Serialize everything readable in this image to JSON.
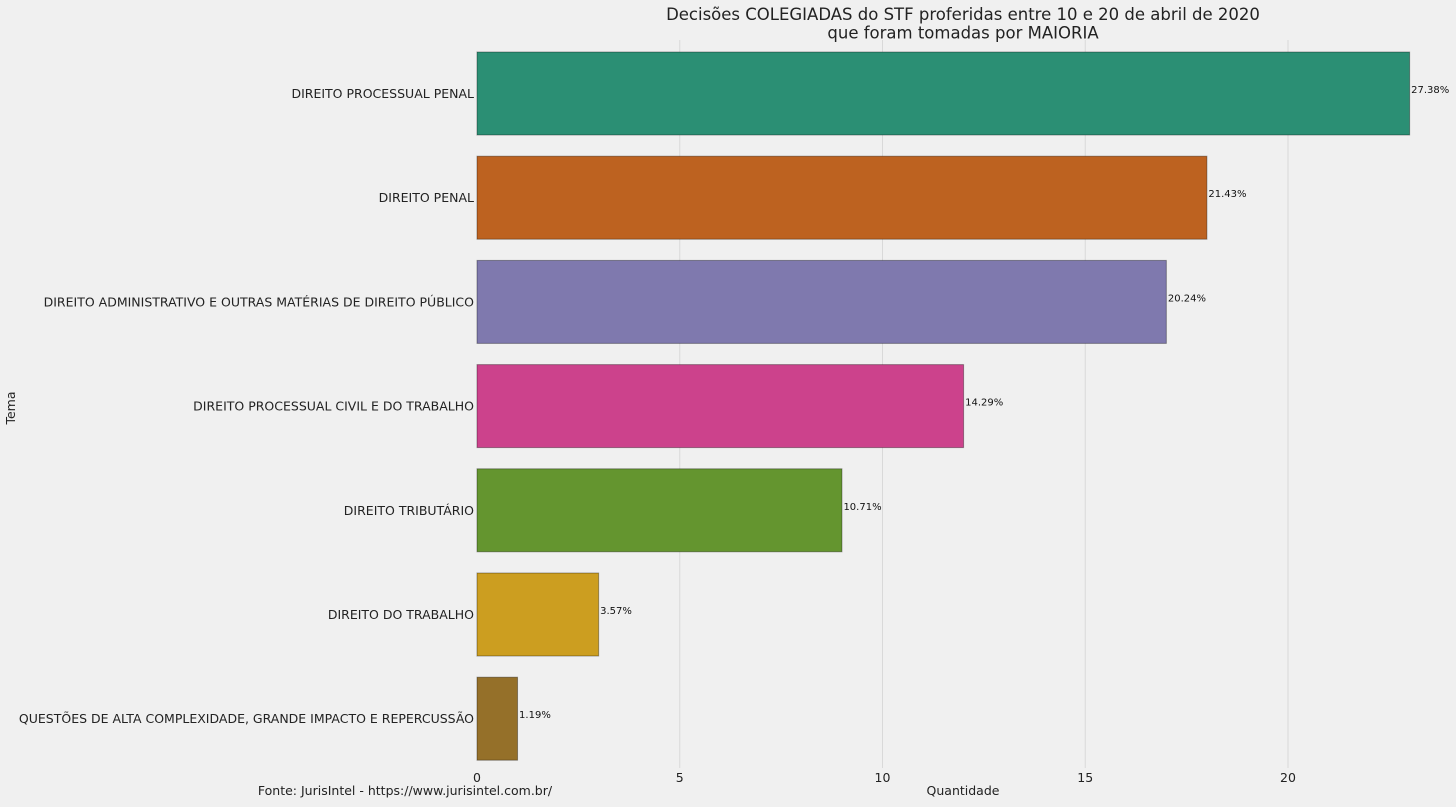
{
  "chart_data": {
    "type": "bar",
    "orientation": "horizontal",
    "title": "Decisões COLEGIADAS do STF proferidas entre 10 e 20 de abril de 2020\nque foram tomadas por MAIORIA",
    "xlabel": "Quantidade",
    "ylabel": "Tema",
    "xlim": [
      0,
      23.15
    ],
    "xticks": [
      0,
      5,
      10,
      15,
      20
    ],
    "grid": true,
    "categories": [
      "DIREITO PROCESSUAL PENAL",
      "DIREITO PENAL",
      "DIREITO ADMINISTRATIVO E OUTRAS MATÉRIAS DE DIREITO PÚBLICO",
      "DIREITO PROCESSUAL CIVIL E DO TRABALHO",
      "DIREITO TRIBUTÁRIO",
      "DIREITO DO TRABALHO",
      "QUESTÕES DE ALTA COMPLEXIDADE, GRANDE IMPACTO E REPERCUSSÃO"
    ],
    "values": [
      23,
      18,
      17,
      12,
      9,
      3,
      1
    ],
    "data_labels": [
      "27.38%",
      "21.43%",
      "20.24%",
      "14.29%",
      "10.71%",
      "3.57%",
      "1.19%"
    ],
    "colors": [
      "#2b8f74",
      "#bd6220",
      "#7f79ae",
      "#cc428c",
      "#64952f",
      "#cc9e20",
      "#957029"
    ]
  },
  "source_note": "Fonte: JurisIntel - https://www.jurisintel.com.br/"
}
